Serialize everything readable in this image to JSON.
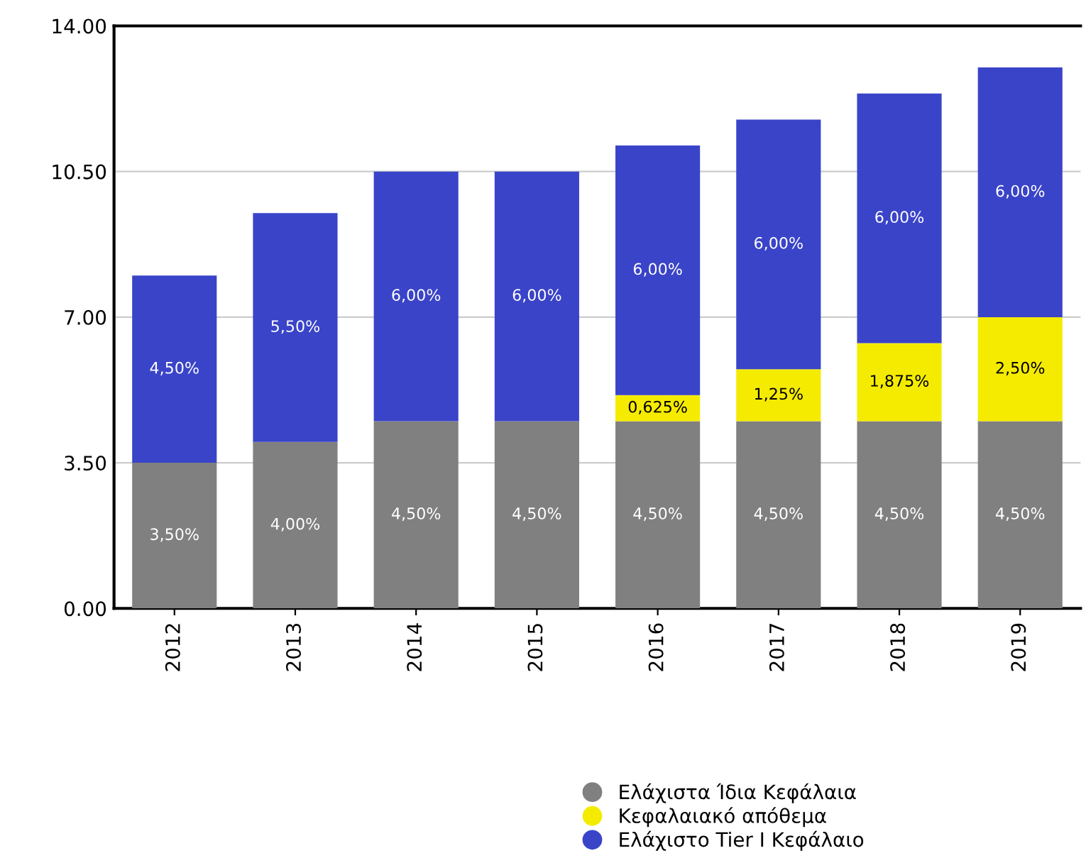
{
  "chart_data": {
    "type": "bar",
    "stacked": true,
    "categories": [
      "2012",
      "2013",
      "2014",
      "2015",
      "2016",
      "2017",
      "2018",
      "2019"
    ],
    "series": [
      {
        "name": "Ελάχιστα Ίδια Κεφάλαια",
        "color": "#808080",
        "values": [
          3.5,
          4.0,
          4.5,
          4.5,
          4.5,
          4.5,
          4.5,
          4.5
        ],
        "value_labels": [
          "3,50%",
          "4,00%",
          "4,50%",
          "4,50%",
          "4,50%",
          "4,50%",
          "4,50%",
          "4,50%"
        ]
      },
      {
        "name": "Κεφαλαιακό απόθεμα",
        "color": "#f5eb00",
        "values": [
          null,
          null,
          null,
          null,
          0.625,
          1.25,
          1.875,
          2.5
        ],
        "value_labels": [
          null,
          null,
          null,
          null,
          "0,625%",
          "1,25%",
          "1,875%",
          "2,50%"
        ]
      },
      {
        "name": "Ελάχιστο Tier I Κεφάλαιο",
        "color": "#3a44c8",
        "values": [
          4.5,
          5.5,
          6.0,
          6.0,
          6.0,
          6.0,
          6.0,
          6.0
        ],
        "value_labels": [
          "4,50%",
          "5,50%",
          "6,00%",
          "6,00%",
          "6,00%",
          "6,00%",
          "6,00%",
          "6,00%"
        ]
      }
    ],
    "ylim": [
      0,
      14
    ],
    "yticks": [
      {
        "value": 0,
        "label": "0.00"
      },
      {
        "value": 3.5,
        "label": "3.50"
      },
      {
        "value": 7,
        "label": "7.00"
      },
      {
        "value": 10.5,
        "label": "10.50"
      },
      {
        "value": 14,
        "label": "14.00"
      }
    ],
    "grid": "y",
    "legend": "bottom right",
    "marker": "circle"
  }
}
